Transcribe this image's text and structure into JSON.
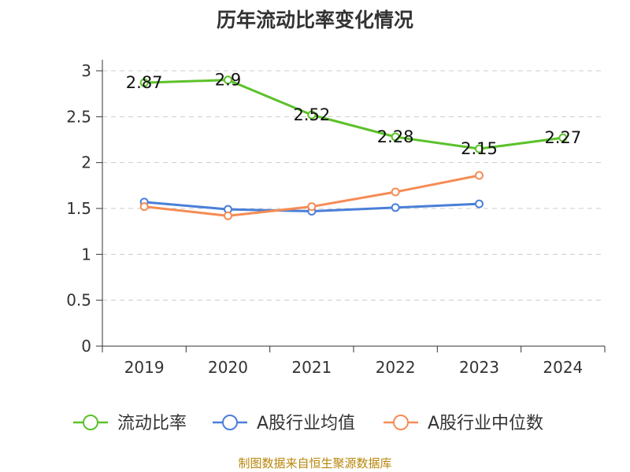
{
  "chart_data": {
    "type": "line",
    "title": "历年流动比率变化情况",
    "categories": [
      "2019",
      "2020",
      "2021",
      "2022",
      "2023",
      "2024"
    ],
    "ylim": [
      0,
      3
    ],
    "yticks": [
      "0",
      "0.5",
      "1",
      "1.5",
      "2",
      "2.5",
      "3"
    ],
    "grid": true,
    "legend_position": "bottom",
    "series": [
      {
        "name": "流动比率",
        "color": "#5cc12b",
        "values": [
          2.87,
          2.9,
          2.52,
          2.28,
          2.15,
          2.27
        ],
        "labels": [
          "2.87",
          "2.9",
          "2.52",
          "2.28",
          "2.15",
          "2.27"
        ]
      },
      {
        "name": "A股行业均值",
        "color": "#4a7fd8",
        "values": [
          1.57,
          1.49,
          1.47,
          1.51,
          1.55,
          null
        ]
      },
      {
        "name": "A股行业中位数",
        "color": "#f58c55",
        "values": [
          1.52,
          1.42,
          1.52,
          1.68,
          1.86,
          null
        ]
      }
    ]
  },
  "source": "制图数据来自恒生聚源数据库"
}
